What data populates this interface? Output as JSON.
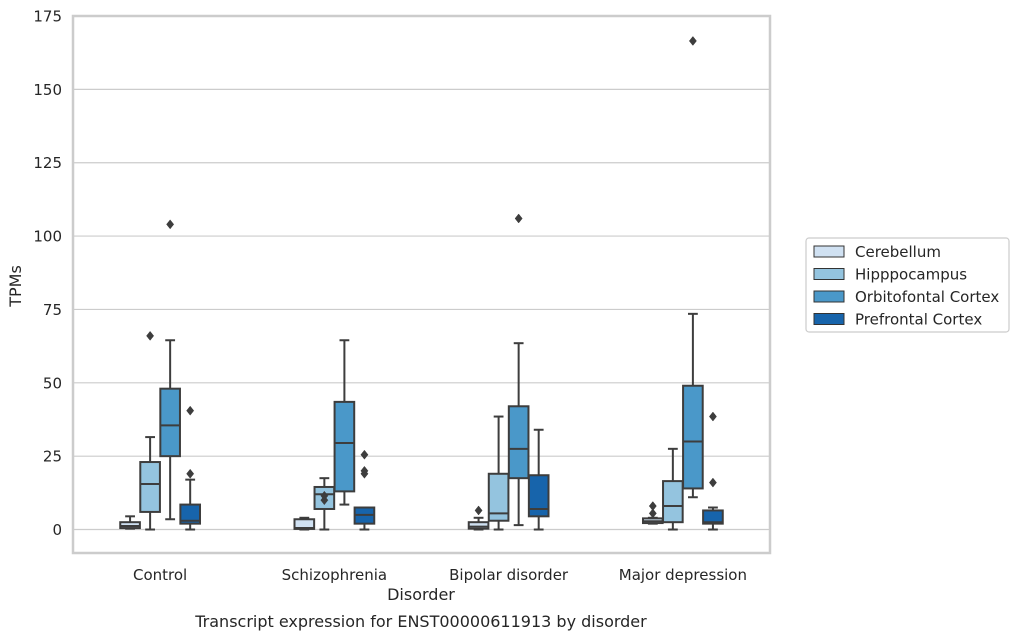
{
  "chart_data": {
    "type": "box",
    "title": "",
    "caption": "Transcript expression for ENST00000611913 by disorder",
    "xlabel": "Disorder",
    "ylabel": "TPMs",
    "ylim": [
      -8,
      175
    ],
    "yticks": [
      0,
      25,
      50,
      75,
      100,
      125,
      150,
      175
    ],
    "grid": "horizontal",
    "legend_position": "right",
    "categories": [
      "Control",
      "Schizophrenia",
      "Bipolar disorder",
      "Major depression"
    ],
    "series": [
      {
        "name": "Cerebellum",
        "color": "#d0e1f2",
        "boxes": [
          {
            "whislo": 0.3,
            "q1": 0.5,
            "med": 1.2,
            "q3": 2.5,
            "whishi": 4.5,
            "fliers": []
          },
          {
            "whislo": 0.0,
            "q1": 0.2,
            "med": 0.5,
            "q3": 3.5,
            "whishi": 4.0,
            "fliers": []
          },
          {
            "whislo": 0.0,
            "q1": 0.3,
            "med": 1.0,
            "q3": 2.5,
            "whishi": 4.0,
            "fliers": [
              6.5
            ]
          },
          {
            "whislo": 2.0,
            "q1": 2.2,
            "med": 2.8,
            "q3": 3.8,
            "whishi": 4.0,
            "fliers": [
              5.5,
              8.0
            ]
          }
        ]
      },
      {
        "name": "Hipppocampus",
        "color": "#94c4df",
        "boxes": [
          {
            "whislo": 0.0,
            "q1": 6.0,
            "med": 15.5,
            "q3": 23.0,
            "whishi": 31.5,
            "fliers": [
              66.0
            ]
          },
          {
            "whislo": 0.0,
            "q1": 7.0,
            "med": 12.0,
            "q3": 14.5,
            "whishi": 17.5,
            "fliers": [
              10.0,
              11.5
            ]
          },
          {
            "whislo": 0.0,
            "q1": 3.0,
            "med": 5.5,
            "q3": 19.0,
            "whishi": 38.5,
            "fliers": []
          },
          {
            "whislo": 0.0,
            "q1": 2.5,
            "med": 8.0,
            "q3": 16.5,
            "whishi": 27.5,
            "fliers": []
          }
        ]
      },
      {
        "name": "Orbitofontal Cortex",
        "color": "#4a98c9",
        "boxes": [
          {
            "whislo": 3.5,
            "q1": 25.0,
            "med": 35.5,
            "q3": 48.0,
            "whishi": 64.5,
            "fliers": [
              104.0
            ]
          },
          {
            "whislo": 8.5,
            "q1": 13.0,
            "med": 29.5,
            "q3": 43.5,
            "whishi": 64.5,
            "fliers": []
          },
          {
            "whislo": 1.5,
            "q1": 17.5,
            "med": 27.5,
            "q3": 42.0,
            "whishi": 63.5,
            "fliers": [
              106.0
            ]
          },
          {
            "whislo": 11.0,
            "q1": 14.0,
            "med": 30.0,
            "q3": 49.0,
            "whishi": 73.5,
            "fliers": [
              166.5
            ]
          }
        ]
      },
      {
        "name": "Prefrontal Cortex",
        "color": "#1764ab",
        "boxes": [
          {
            "whislo": 0.0,
            "q1": 2.0,
            "med": 3.0,
            "q3": 8.5,
            "whishi": 17.0,
            "fliers": [
              19.0,
              40.5
            ]
          },
          {
            "whislo": 0.0,
            "q1": 2.0,
            "med": 5.0,
            "q3": 7.5,
            "whishi": 7.5,
            "fliers": [
              19.0,
              20.0,
              25.5
            ]
          },
          {
            "whislo": 0.0,
            "q1": 4.5,
            "med": 7.0,
            "q3": 18.5,
            "whishi": 34.0,
            "fliers": []
          },
          {
            "whislo": 0.0,
            "q1": 2.0,
            "med": 2.5,
            "q3": 6.5,
            "whishi": 7.5,
            "fliers": [
              16.0,
              38.5
            ]
          }
        ]
      }
    ]
  }
}
